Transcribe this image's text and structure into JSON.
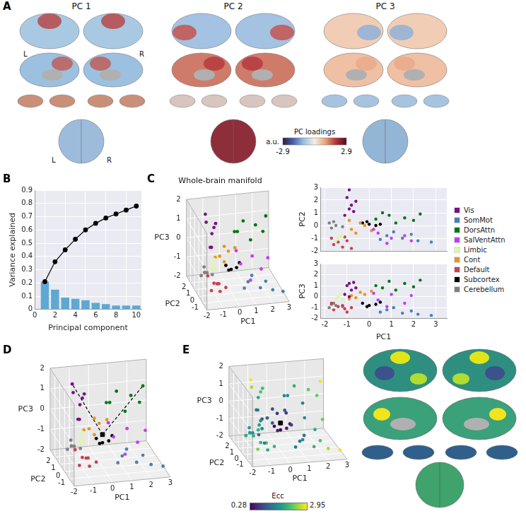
{
  "figure": {
    "panel": "A",
    "titles": [
      "PC 1",
      "PC 2",
      "PC 3"
    ],
    "hemispheres": [
      "L",
      "R"
    ],
    "colorbar": {
      "label": "PC loadings",
      "unit": "a.u.",
      "range": [
        -2.9,
        2.9
      ]
    }
  },
  "manifold": {
    "columns": [
      "PC1",
      "PC2",
      "PC3"
    ],
    "series": [
      {
        "name": "Vis",
        "color": "#781286",
        "values": [
          [
            -0.9,
            2.8,
            1.2
          ],
          [
            -1.0,
            2.2,
            1.0
          ],
          [
            -0.8,
            1.6,
            0.6
          ],
          [
            -0.7,
            1.1,
            1.3
          ],
          [
            -1.1,
            0.8,
            0.2
          ],
          [
            -0.6,
            1.9,
            0.8
          ],
          [
            -0.9,
            1.3,
            0.0
          ]
        ],
        "ecc": [
          2.9,
          2.6,
          1.9,
          2.1,
          1.3,
          2.2,
          1.4
        ]
      },
      {
        "name": "SomMot",
        "color": "#4682B4",
        "values": [
          [
            0.8,
            -0.8,
            -1.2
          ],
          [
            1.5,
            -1.0,
            -1.5
          ],
          [
            2.2,
            -1.2,
            -1.6
          ],
          [
            2.8,
            -1.3,
            -1.7
          ],
          [
            1.1,
            -0.5,
            -1.0
          ],
          [
            1.9,
            -0.7,
            -1.3
          ],
          [
            0.5,
            -1.1,
            -1.4
          ]
        ],
        "ecc": [
          1.4,
          2.0,
          2.6,
          2.9,
          1.3,
          2.2,
          1.4
        ]
      },
      {
        "name": "DorsAttn",
        "color": "#00760E",
        "values": [
          [
            0.3,
            0.5,
            1.0
          ],
          [
            0.9,
            0.8,
            1.4
          ],
          [
            1.6,
            0.6,
            1.2
          ],
          [
            2.3,
            0.9,
            1.5
          ],
          [
            1.2,
            0.2,
            0.6
          ],
          [
            0.6,
            1.0,
            0.8
          ],
          [
            2.0,
            0.4,
            0.9
          ]
        ],
        "ecc": [
          1.5,
          2.0,
          2.3,
          2.9,
          1.5,
          1.6,
          2.3
        ]
      },
      {
        "name": "SalVentAttn",
        "color": "#C43AFA",
        "values": [
          [
            0.4,
            -0.6,
            -0.3
          ],
          [
            1.0,
            -1.0,
            0.2
          ],
          [
            1.6,
            -0.8,
            -0.6
          ],
          [
            0.8,
            -1.4,
            -0.9
          ],
          [
            1.9,
            -1.2,
            0.1
          ],
          [
            0.2,
            -0.3,
            0.3
          ]
        ],
        "ecc": [
          0.8,
          1.6,
          1.9,
          1.6,
          2.3,
          0.8
        ]
      },
      {
        "name": "Limbic",
        "color": "#DCF8A4",
        "values": [
          [
            -1.4,
            -1.0,
            0.0
          ],
          [
            -1.2,
            -0.8,
            -0.3
          ],
          [
            -1.5,
            -1.2,
            -0.2
          ],
          [
            -1.3,
            -0.9,
            0.2
          ]
        ],
        "ecc": [
          1.8,
          1.5,
          2.0,
          1.7
        ]
      },
      {
        "name": "Cont",
        "color": "#E69422",
        "values": [
          [
            -0.8,
            -0.3,
            0.1
          ],
          [
            -0.4,
            0.2,
            0.4
          ],
          [
            -0.6,
            -0.6,
            -0.1
          ],
          [
            -0.2,
            0.0,
            0.2
          ],
          [
            -0.9,
            0.4,
            -0.2
          ],
          [
            0.1,
            -0.4,
            0.5
          ]
        ],
        "ecc": [
          1.0,
          0.9,
          1.0,
          0.7,
          1.0,
          1.0
        ]
      },
      {
        "name": "Default",
        "color": "#CD3E4E",
        "values": [
          [
            -1.6,
            -1.5,
            -1.2
          ],
          [
            -1.2,
            -1.7,
            -0.8
          ],
          [
            -1.0,
            -1.2,
            -1.4
          ],
          [
            -1.7,
            -1.0,
            -0.6
          ],
          [
            -0.8,
            -1.8,
            -1.0
          ],
          [
            -1.4,
            -1.3,
            -0.9
          ],
          [
            -1.1,
            -0.9,
            -1.1
          ]
        ],
        "ecc": [
          2.4,
          2.2,
          1.9,
          2.0,
          2.0,
          2.0,
          1.5
        ]
      },
      {
        "name": "Subcortex",
        "color": "#000000",
        "values": [
          [
            -0.3,
            0.2,
            -0.6
          ],
          [
            0.0,
            0.1,
            -0.8
          ],
          [
            0.3,
            0.0,
            -0.7
          ],
          [
            -0.1,
            0.3,
            -0.9
          ],
          [
            0.5,
            0.1,
            -0.5
          ]
        ],
        "ecc": [
          0.3,
          0.28,
          0.5,
          0.5,
          0.5
        ]
      },
      {
        "name": "Cerebellum",
        "color": "#808080",
        "values": [
          [
            -1.8,
            0.2,
            -1.0
          ],
          [
            -1.5,
            0.0,
            -0.8
          ],
          [
            -1.6,
            0.3,
            -0.6
          ],
          [
            -1.2,
            -0.1,
            -0.9
          ],
          [
            -1.7,
            -0.2,
            -0.7
          ]
        ],
        "ecc": [
          1.9,
          1.6,
          1.7,
          1.3,
          1.8
        ]
      }
    ]
  },
  "chart_data": [
    {
      "panel": "B",
      "type": "bar",
      "xlabel": "Principal component",
      "ylabel": "Variance explained",
      "x": [
        1,
        2,
        3,
        4,
        5,
        6,
        7,
        8,
        9,
        10
      ],
      "series": [
        {
          "type": "bar",
          "color": "#5fa8d3",
          "values": [
            0.21,
            0.15,
            0.09,
            0.08,
            0.07,
            0.05,
            0.04,
            0.03,
            0.03,
            0.03
          ]
        },
        {
          "type": "line",
          "color": "#000000",
          "marker": "circle",
          "values": [
            0.21,
            0.36,
            0.45,
            0.53,
            0.6,
            0.65,
            0.69,
            0.72,
            0.75,
            0.78
          ]
        }
      ],
      "xlim": [
        0,
        10.5
      ],
      "xticks": [
        0,
        2,
        4,
        6,
        8,
        10
      ],
      "ylim": [
        0,
        0.9
      ],
      "yticks": [
        0,
        0.1,
        0.2,
        0.3,
        0.4,
        0.5,
        0.6,
        0.7,
        0.8,
        0.9
      ],
      "grid": true
    },
    {
      "panel": "C",
      "type": "scatter3d",
      "title": "Whole-brain manifold",
      "xlabel": "PC1",
      "ylabel": "PC2",
      "zlabel": "PC3",
      "xlim": [
        -2,
        3
      ],
      "ylim": [
        -2,
        3
      ],
      "zlim": [
        -2,
        2
      ],
      "xticks": [
        -2,
        -1,
        0,
        1,
        2,
        3
      ],
      "yticks": [
        -1,
        0,
        1,
        2
      ],
      "zticks": [
        -2,
        -1,
        0,
        1,
        2
      ]
    },
    {
      "type": "scatter",
      "ylabel": "PC2",
      "xlim": [
        -2.2,
        3.5
      ],
      "xticks": [
        -2,
        -1,
        0,
        1,
        2,
        3
      ],
      "ylim": [
        -2,
        3
      ],
      "yticks": [
        -2,
        -1,
        0,
        1,
        2,
        3
      ],
      "grid": true,
      "tick_labels": "y",
      "legend": "right"
    },
    {
      "type": "scatter",
      "xlabel": "PC1",
      "ylabel": "PC3",
      "xlim": [
        -2.2,
        3.5
      ],
      "xticks": [
        -2,
        -1,
        0,
        1,
        2,
        3
      ],
      "ylim": [
        -2,
        3
      ],
      "yticks": [
        -2,
        -1,
        0,
        1,
        2,
        3
      ],
      "grid": true
    },
    {
      "panel": "D",
      "type": "scatter3d",
      "xlabel": "PC1",
      "ylabel": "PC2",
      "zlabel": "PC3",
      "xlim": [
        -2,
        3
      ],
      "ylim": [
        -2,
        3
      ],
      "zlim": [
        -2,
        2
      ],
      "xticks": [
        -2,
        -1,
        0,
        1,
        2,
        3
      ],
      "yticks": [
        -1,
        0,
        1,
        2
      ],
      "zticks": [
        -2,
        -1,
        0,
        1,
        2
      ],
      "centroid": {
        "values": [
          0,
          0.1,
          -0.4
        ],
        "marker": "square",
        "color": "#000000"
      },
      "lines": {
        "line_style": "dashed",
        "color": "#000000",
        "ends": [
          [
            -0.9,
            2.8,
            1.2
          ],
          [
            2.3,
            0.9,
            1.5
          ]
        ]
      }
    },
    {
      "panel": "E",
      "type": "scatter3d",
      "xlabel": "PC1",
      "ylabel": "PC2",
      "zlabel": "PC3",
      "xlim": [
        -2,
        3
      ],
      "ylim": [
        -2,
        3
      ],
      "zlim": [
        -2,
        2
      ],
      "xticks": [
        -2,
        -1,
        0,
        1,
        2,
        3
      ],
      "yticks": [
        -1,
        0,
        1,
        2
      ],
      "zticks": [
        -2,
        -1,
        0,
        1,
        2
      ],
      "centroid": {
        "values": [
          0,
          0.1,
          -0.4
        ],
        "marker": "square",
        "color": "#000000"
      },
      "colorbar": {
        "label": "Ecc",
        "range": [
          0.28,
          2.95
        ]
      }
    }
  ]
}
